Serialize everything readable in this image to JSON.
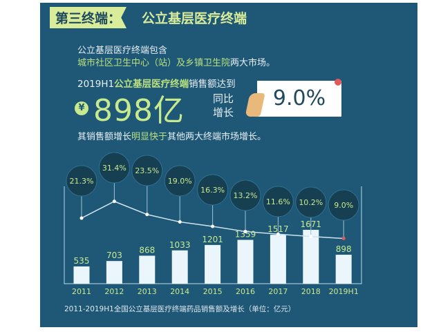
{
  "header": {
    "tag": "第三终端：",
    "title": "公立基层医疗终端"
  },
  "intro": {
    "line1": "公立基层医疗终端包含",
    "line2_green": "城市社区卫生中心（站）及乡镇卫生院",
    "line2_rest": "两大市场。"
  },
  "sales": {
    "prefix": "2019H1",
    "highlight": "公立基层医疗终端",
    "suffix": "销售额达到",
    "currency": "¥",
    "amount": "898亿",
    "yoy_label_1": "同比",
    "yoy_label_2": "增长",
    "yoy_value": "9.0%"
  },
  "note": {
    "a": "其销售额增长",
    "b": "明显快于",
    "c": "其他两大终端市场增长。"
  },
  "colors": {
    "background": "#1f5877",
    "accent": "#c8ea8e",
    "bar": "#eaf6fc",
    "line": "#cfe3ee",
    "bubble": "#173f52"
  },
  "chart_data": {
    "type": "bar+line",
    "categories": [
      "2011",
      "2012",
      "2013",
      "2014",
      "2015",
      "2016",
      "2017",
      "2018",
      "2019H1"
    ],
    "series": [
      {
        "type": "bar",
        "values": [
          535,
          703,
          868,
          1033,
          1201,
          1359,
          1517,
          1671,
          898
        ]
      },
      {
        "type": "line",
        "values": [
          21.3,
          31.4,
          23.5,
          19.0,
          16.3,
          13.2,
          11.6,
          10.2,
          9.0
        ]
      }
    ],
    "bar_labels": [
      "535",
      "703",
      "868",
      "1033",
      "1201",
      "1359",
      "1517",
      "1671",
      "898"
    ],
    "line_labels": [
      "21.3%",
      "31.4%",
      "23.5%",
      "19.0%",
      "16.3%",
      "13.2%",
      "11.6%",
      "10.2%",
      "9.0%"
    ],
    "caption": "2011-2019H1全国公立基层医疗终端药品销售额及增长（单位：亿元）",
    "grid": false
  }
}
